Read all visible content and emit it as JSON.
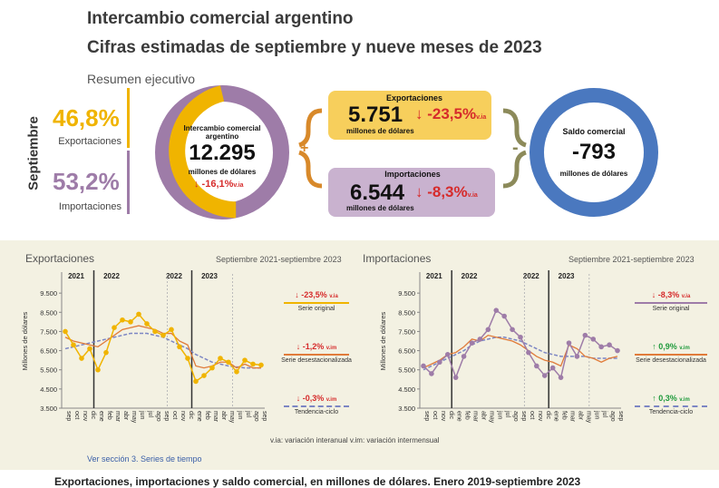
{
  "header": {
    "title": "Intercambio comercial argentino",
    "subtitle": "Cifras estimadas de septiembre y nueve meses de 2023",
    "section": "Resumen ejecutivo"
  },
  "summary": {
    "month_label": "Septiembre",
    "exports_share": "46,8%",
    "exports_share_label": "Exportaciones",
    "imports_share": "53,2%",
    "imports_share_label": "Importaciones",
    "total_label": "Intercambio comercial argentino",
    "total_value": "12.295",
    "total_unit": "millones de dólares",
    "total_var": "↓ -16,1%",
    "total_var_suffix": "v.ia",
    "exports_title": "Exportaciones",
    "exports_value": "5.751",
    "exports_unit": "millones de dólares",
    "exports_var": "↓ -23,5%",
    "exports_var_suffix": "v.ia",
    "imports_title": "Importaciones",
    "imports_value": "6.544",
    "imports_unit": "millones de dólares",
    "imports_var": "↓ -8,3%",
    "imports_var_suffix": "v.ia",
    "plus": "+",
    "minus": "-",
    "balance_label": "Saldo comercial",
    "balance_value": "-793",
    "balance_unit": "millones de dólares"
  },
  "colors": {
    "exports": "#f0b400",
    "imports": "#9e7ca8",
    "balance": "#4a78bf",
    "seasonal": "#e07b3a",
    "trend": "#7c86c4",
    "down": "#d62b2b",
    "up": "#1f9a3c"
  },
  "chart_data": [
    {
      "type": "line",
      "title": "Exportaciones",
      "period": "Septiembre 2021-septiembre 2023",
      "ylabel": "Millones de dólares",
      "ylim": [
        3500,
        10500
      ],
      "yticks": [
        "3.500",
        "4.500",
        "5.500",
        "6.500",
        "7.500",
        "8.500",
        "9.500"
      ],
      "years": [
        "2021",
        "2022",
        "2022",
        "2023"
      ],
      "x": [
        "sep",
        "oct",
        "nov",
        "dic",
        "ene",
        "feb",
        "mar",
        "abr",
        "may",
        "jun",
        "jul",
        "ago",
        "sep",
        "oct",
        "nov",
        "dic",
        "ene",
        "feb",
        "mar",
        "abr",
        "may",
        "jun",
        "jul",
        "ago",
        "sep"
      ],
      "series": [
        {
          "name": "Serie original",
          "values": [
            7500,
            6800,
            6100,
            6600,
            5500,
            6400,
            7700,
            8100,
            8000,
            8400,
            7900,
            7500,
            7300,
            7600,
            6700,
            6100,
            4900,
            5200,
            5600,
            6100,
            5900,
            5400,
            6000,
            5800,
            5750
          ]
        },
        {
          "name": "Serie desestacionalizada",
          "values": [
            7200,
            7000,
            6900,
            6800,
            6700,
            7000,
            7300,
            7600,
            7700,
            7800,
            7700,
            7600,
            7400,
            7400,
            7000,
            6800,
            5700,
            5600,
            5700,
            5900,
            5900,
            5600,
            5800,
            5600,
            5600
          ]
        },
        {
          "name": "Tendencia-ciclo",
          "values": [
            6600,
            6700,
            6800,
            6900,
            7000,
            7100,
            7200,
            7300,
            7400,
            7400,
            7400,
            7300,
            7200,
            7000,
            6800,
            6600,
            6300,
            6100,
            5900,
            5800,
            5700,
            5650,
            5600,
            5600,
            5600
          ]
        }
      ],
      "legend": [
        {
          "var": "↓ -23,5%",
          "unit": "v.ia",
          "label": "Serie original"
        },
        {
          "var": "↓ -1,2%",
          "unit": "v.im",
          "label": "Serie desestacionalizada"
        },
        {
          "var": "↓ -0,3%",
          "unit": "v.im",
          "label": "Tendencia-ciclo"
        }
      ]
    },
    {
      "type": "line",
      "title": "Importaciones",
      "period": "Septiembre 2021-septiembre 2023",
      "ylabel": "Millones de dólares",
      "ylim": [
        3500,
        10500
      ],
      "yticks": [
        "3.500",
        "4.500",
        "5.500",
        "6.500",
        "7.500",
        "8.500",
        "9.500"
      ],
      "years": [
        "2021",
        "2022",
        "2022",
        "2023"
      ],
      "x": [
        "sep",
        "oct",
        "nov",
        "dic",
        "ene",
        "feb",
        "mar",
        "abr",
        "may",
        "jun",
        "jul",
        "ago",
        "sep",
        "oct",
        "nov",
        "dic",
        "ene",
        "feb",
        "mar",
        "abr",
        "may",
        "jun",
        "jul",
        "ago",
        "sep"
      ],
      "series": [
        {
          "name": "Serie original",
          "values": [
            5700,
            5300,
            5900,
            6300,
            5100,
            6200,
            6900,
            7100,
            7600,
            8600,
            8300,
            7600,
            7200,
            6400,
            5700,
            5200,
            5600,
            5100,
            6900,
            6200,
            7300,
            7100,
            6700,
            6800,
            6500
          ]
        },
        {
          "name": "Serie desestacionalizada",
          "values": [
            5600,
            5800,
            6000,
            6300,
            6400,
            6700,
            7100,
            7000,
            7300,
            7200,
            7100,
            7000,
            6800,
            6500,
            6200,
            6000,
            5900,
            5700,
            6800,
            6600,
            6200,
            6100,
            5900,
            6100,
            6200
          ]
        },
        {
          "name": "Tendencia-ciclo",
          "values": [
            5500,
            5700,
            5900,
            6100,
            6300,
            6500,
            6800,
            7000,
            7100,
            7200,
            7200,
            7100,
            7000,
            6800,
            6600,
            6400,
            6300,
            6200,
            6200,
            6200,
            6200,
            6100,
            6100,
            6100,
            6100
          ]
        }
      ],
      "legend": [
        {
          "var": "↓ -8,3%",
          "unit": "v.ia",
          "label": "Serie original"
        },
        {
          "var": "↑ 0,9%",
          "unit": "v.im",
          "label": "Serie desestacionalizada"
        },
        {
          "var": "↑ 0,3%",
          "unit": "v.im",
          "label": "Tendencia-ciclo"
        }
      ]
    }
  ],
  "footer": {
    "notes": "v.ia: variación interanual   v.im: variación intermensual",
    "link": "Ver sección 3. Series de tiempo",
    "bottom": "Exportaciones, importaciones y saldo comercial, en millones de dólares. Enero 2019-septiembre 2023"
  }
}
